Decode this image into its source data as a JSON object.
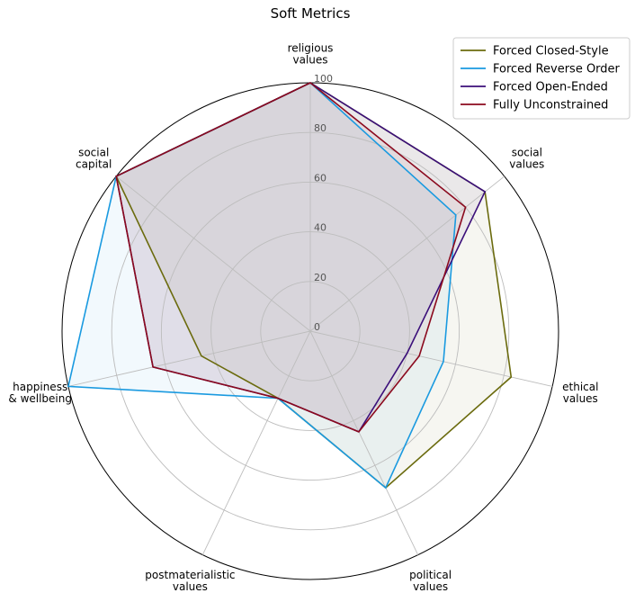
{
  "chart_data": {
    "type": "radar",
    "title": "Soft Metrics",
    "axes": [
      [
        "religious",
        "values"
      ],
      [
        "social",
        "values"
      ],
      [
        "ethical",
        "values"
      ],
      [
        "political",
        "values"
      ],
      [
        "postmaterialistic",
        "values"
      ],
      [
        "happiness",
        "& wellbeing"
      ],
      [
        "social",
        "capital"
      ]
    ],
    "rlim": [
      0,
      100
    ],
    "ticks": [
      "0",
      "20",
      "40",
      "60",
      "80",
      "100"
    ],
    "tick_values": [
      0,
      20,
      40,
      60,
      80,
      100
    ],
    "grid": true,
    "legend_position": "top-right",
    "series": [
      {
        "name": "Forced Closed-Style",
        "color": "#6b6b0e",
        "values": [
          100,
          90,
          83,
          70,
          30,
          45,
          100
        ]
      },
      {
        "name": "Forced Reverse Order",
        "color": "#1a9ae0",
        "values": [
          100,
          75,
          55,
          70,
          30,
          100,
          100
        ]
      },
      {
        "name": "Forced Open-Ended",
        "color": "#3b0f7a",
        "values": [
          100,
          90,
          40,
          45,
          30,
          65,
          100
        ]
      },
      {
        "name": "Fully Unconstrained",
        "color": "#8b0a1e",
        "values": [
          100,
          80,
          45,
          45,
          30,
          65,
          100
        ]
      }
    ]
  }
}
